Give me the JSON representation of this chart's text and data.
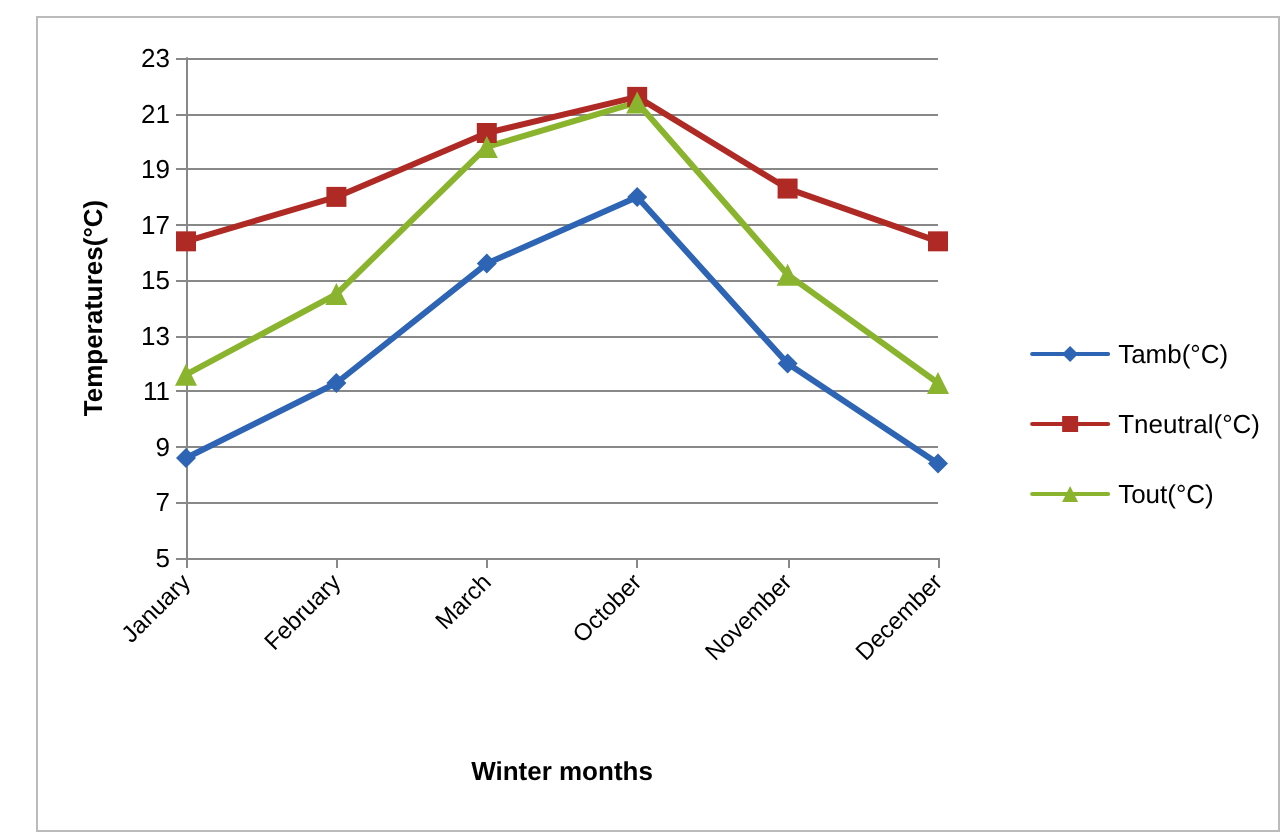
{
  "chart_data": {
    "type": "line",
    "xlabel": "Winter months",
    "ylabel": "Temperatures(°C)",
    "categories": [
      "January",
      "February",
      "March",
      "October",
      "November",
      "December"
    ],
    "series": [
      {
        "name": "Tamb(°C)",
        "color": "#2e64b4",
        "marker": "diamond",
        "values": [
          8.6,
          11.3,
          15.6,
          18.0,
          12.0,
          8.4
        ]
      },
      {
        "name": "Tneutral(°C)",
        "color": "#b02a25",
        "marker": "square",
        "values": [
          16.4,
          18.0,
          20.3,
          21.6,
          18.3,
          16.4
        ]
      },
      {
        "name": "Tout(°C)",
        "color": "#8ab42e",
        "marker": "triangle",
        "values": [
          11.6,
          14.5,
          19.8,
          21.4,
          15.2,
          11.3
        ]
      }
    ],
    "ylim": [
      5,
      23
    ],
    "yticks": [
      5,
      7,
      9,
      11,
      13,
      15,
      17,
      19,
      21,
      23
    ],
    "grid": "y",
    "legend": "right",
    "line_style": "solid"
  }
}
